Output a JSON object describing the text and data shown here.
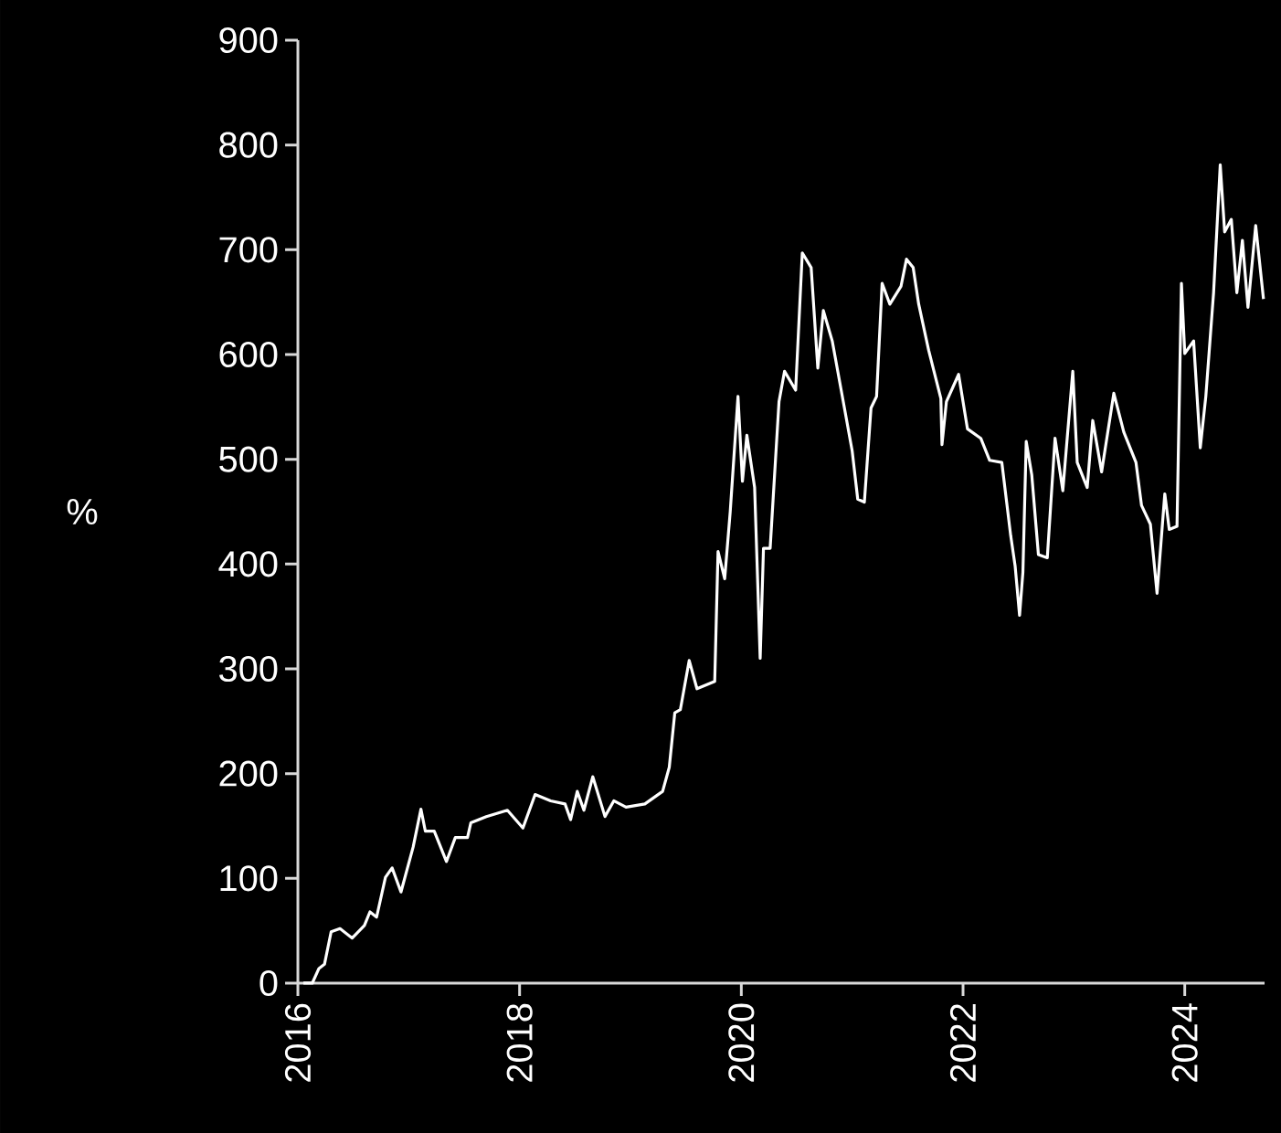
{
  "chart_data": {
    "type": "line",
    "ylabel": "%",
    "xlim": [
      2016,
      2024.72
    ],
    "xticks": [
      2016,
      2018,
      2020,
      2022,
      2024
    ],
    "ylim": [
      0,
      900
    ],
    "yticks": [
      0,
      100,
      200,
      300,
      400,
      500,
      600,
      700,
      800,
      900
    ],
    "marker": "none",
    "line_style": "solid",
    "series": [
      {
        "color": "#ffffff",
        "x": [
          2016.05,
          2016.13,
          2016.19,
          2016.24,
          2016.3,
          2016.38,
          2016.49,
          2016.6,
          2016.65,
          2016.71,
          2016.79,
          2016.85,
          2016.93,
          2017.04,
          2017.11,
          2017.15,
          2017.23,
          2017.34,
          2017.42,
          2017.53,
          2017.56,
          2017.7,
          2017.89,
          2018.03,
          2018.14,
          2018.28,
          2018.41,
          2018.46,
          2018.52,
          2018.58,
          2018.66,
          2018.77,
          2018.85,
          2018.96,
          2019.13,
          2019.29,
          2019.35,
          2019.4,
          2019.45,
          2019.53,
          2019.6,
          2019.76,
          2019.79,
          2019.85,
          2019.9,
          2019.97,
          2020.01,
          2020.05,
          2020.12,
          2020.17,
          2020.2,
          2020.26,
          2020.34,
          2020.39,
          2020.49,
          2020.55,
          2020.63,
          2020.69,
          2020.74,
          2020.82,
          2020.93,
          2021.0,
          2021.05,
          2021.11,
          2021.17,
          2021.22,
          2021.27,
          2021.34,
          2021.44,
          2021.49,
          2021.55,
          2021.6,
          2021.69,
          2021.8,
          2021.81,
          2021.85,
          2021.96,
          2022.04,
          2022.16,
          2022.24,
          2022.35,
          2022.43,
          2022.47,
          2022.51,
          2022.54,
          2022.57,
          2022.62,
          2022.68,
          2022.76,
          2022.83,
          2022.9,
          2022.99,
          2023.03,
          2023.12,
          2023.17,
          2023.25,
          2023.36,
          2023.45,
          2023.56,
          2023.61,
          2023.69,
          2023.75,
          2023.82,
          2023.86,
          2023.93,
          2023.97,
          2024.0,
          2024.08,
          2024.14,
          2024.19,
          2024.26,
          2024.32,
          2024.36,
          2024.42,
          2024.47,
          2024.52,
          2024.57,
          2024.64,
          2024.71
        ],
        "values": [
          0,
          0,
          14,
          18,
          49,
          52,
          43,
          55,
          68,
          63,
          101,
          110,
          87,
          130,
          166,
          145,
          145,
          116,
          139,
          139,
          153,
          159,
          165,
          148,
          180,
          174,
          171,
          156,
          183,
          165,
          197,
          159,
          174,
          168,
          171,
          183,
          206,
          258,
          261,
          308,
          281,
          288,
          412,
          386,
          450,
          560,
          479,
          523,
          473,
          310,
          415,
          415,
          555,
          584,
          566,
          697,
          683,
          587,
          642,
          613,
          549,
          508,
          462,
          459,
          549,
          560,
          668,
          648,
          665,
          691,
          683,
          648,
          604,
          558,
          514,
          555,
          581,
          529,
          520,
          499,
          497,
          427,
          398,
          351,
          392,
          517,
          485,
          409,
          406,
          520,
          470,
          584,
          497,
          473,
          537,
          488,
          563,
          526,
          497,
          456,
          438,
          372,
          467,
          433,
          436,
          668,
          601,
          613,
          511,
          560,
          659,
          781,
          717,
          729,
          659,
          709,
          645,
          723,
          653
        ]
      }
    ]
  }
}
